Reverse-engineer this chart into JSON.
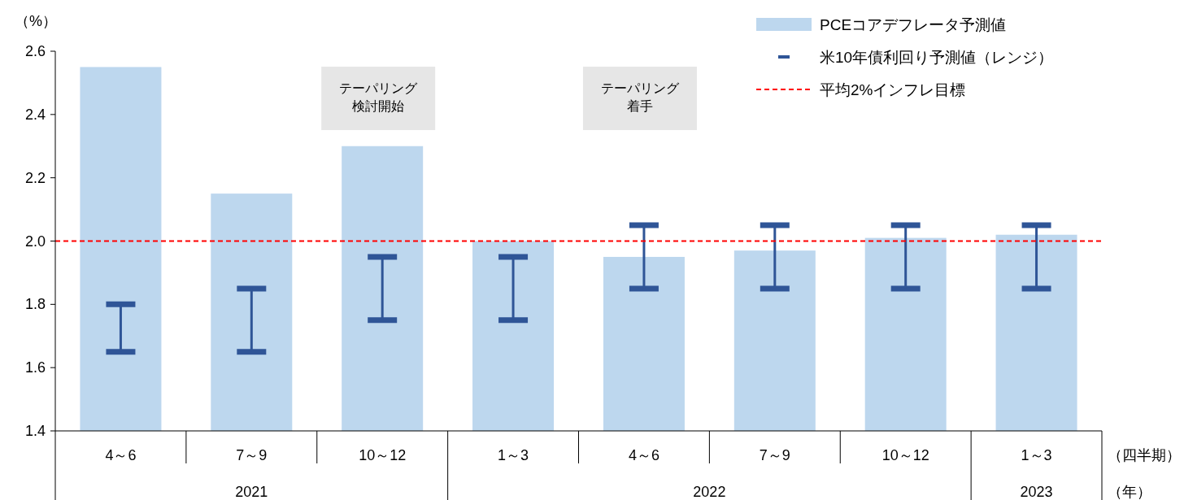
{
  "chart_data": {
    "type": "bar",
    "ylabel": "（%）",
    "xlabel": "（四半期）",
    "categories": [
      "4～6",
      "7～9",
      "10～12",
      "1～3",
      "4～6",
      "7～9",
      "10～12",
      "1～3"
    ],
    "series": [
      {
        "name": "PCEコアデフレータ予測値",
        "color": "#bdd7ee",
        "values": [
          2.55,
          2.15,
          2.3,
          2.0,
          1.95,
          1.97,
          2.01,
          2.02
        ]
      },
      {
        "name": "米10年債利回り予測値（レンジ）",
        "type": "bar",
        "color": "#2f5597",
        "base": [
          1.65,
          1.65,
          1.75,
          1.75,
          1.85,
          1.85,
          1.85,
          1.85
        ],
        "values": [
          0.15,
          0.2,
          0.2,
          0.2,
          0.2,
          0.2,
          0.2,
          0.2
        ]
      }
    ],
    "ref_lines": [
      {
        "axis": "y",
        "value": 2.0,
        "label": "平均2%インフレ目標",
        "color": "#ff0000",
        "line_style": "dashed"
      }
    ],
    "ylim": [
      1.4,
      2.6
    ],
    "yticks": [
      {
        "value": 1.4,
        "label": "1.4"
      },
      {
        "value": 1.6,
        "label": "1.6"
      },
      {
        "value": 1.8,
        "label": "1.8"
      },
      {
        "value": 2.0,
        "label": "2.0"
      },
      {
        "value": 2.2,
        "label": "2.2"
      },
      {
        "value": 2.4,
        "label": "2.4"
      },
      {
        "value": 2.6,
        "label": "2.6"
      }
    ],
    "legend": "top right",
    "grid": false,
    "annotations": [
      "2021",
      "2022",
      "2023",
      "（年）",
      "テーパリング検討開始",
      "テーパリング着手"
    ]
  }
}
